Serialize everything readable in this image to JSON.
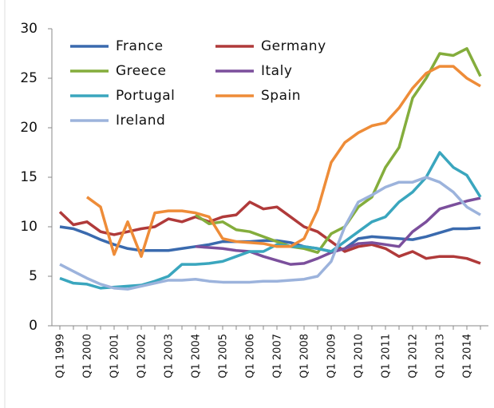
{
  "chart_data": {
    "type": "line",
    "categories": [
      "Q1 1999",
      null,
      "Q1 2000",
      null,
      "Q1 2001",
      null,
      "Q1 2002",
      null,
      "Q1 2003",
      null,
      "Q1 2004",
      null,
      "Q1 2005",
      null,
      "Q1 2006",
      null,
      "Q1 2007",
      null,
      "Q1 2008",
      null,
      "Q1 2009",
      null,
      "Q1 2010",
      null,
      "Q1 2011",
      null,
      "Q1 2012",
      null,
      "Q1 2013",
      null,
      "Q1 2014",
      null
    ],
    "ylim": [
      0,
      30
    ],
    "yticks": [
      0,
      5,
      10,
      15,
      20,
      25,
      30
    ],
    "grid": false,
    "legend": "top-left",
    "series": [
      {
        "name": "France",
        "color": "#3a6aae",
        "values": [
          10,
          9.8,
          9.3,
          8.7,
          8.2,
          7.8,
          7.6,
          7.6,
          7.6,
          7.8,
          8.0,
          8.2,
          8.5,
          8.5,
          8.5,
          8.6,
          8.6,
          8.4,
          8.0,
          7.8,
          7.5,
          7.8,
          8.8,
          9.0,
          8.9,
          8.8,
          8.7,
          9.0,
          9.4,
          9.8,
          9.8,
          9.9
        ]
      },
      {
        "name": "Germany",
        "color": "#b03a3a",
        "values": [
          11.5,
          10.2,
          10.5,
          9.5,
          9.2,
          9.5,
          9.8,
          10.0,
          10.8,
          10.5,
          11.0,
          10.5,
          11.0,
          11.2,
          12.5,
          11.8,
          12.0,
          11.0,
          10.0,
          9.5,
          8.5,
          7.5,
          8.0,
          8.2,
          7.8,
          7.0,
          7.5,
          6.8,
          7.0,
          7.0,
          6.8,
          6.3
        ]
      },
      {
        "name": "Greece",
        "color": "#84ad3c",
        "values": [
          null,
          null,
          null,
          null,
          null,
          null,
          null,
          null,
          null,
          null,
          11.2,
          10.3,
          10.5,
          9.7,
          9.5,
          9.0,
          8.5,
          8.0,
          7.8,
          7.4,
          9.3,
          10.0,
          12.0,
          13.0,
          16.0,
          18.0,
          23.0,
          25.0,
          27.5,
          27.3,
          28.0,
          25.2
        ]
      },
      {
        "name": "Italy",
        "color": "#7b4f9c",
        "values": [
          null,
          null,
          null,
          null,
          null,
          null,
          null,
          null,
          null,
          null,
          8.0,
          7.9,
          7.8,
          7.6,
          7.5,
          7.0,
          6.6,
          6.2,
          6.3,
          6.8,
          7.4,
          7.8,
          8.3,
          8.4,
          8.2,
          8.0,
          9.5,
          10.5,
          11.8,
          12.2,
          12.6,
          12.9
        ]
      },
      {
        "name": "Portugal",
        "color": "#3aa6be",
        "values": [
          4.8,
          4.3,
          4.2,
          3.8,
          3.9,
          4.0,
          4.1,
          4.5,
          5.0,
          6.2,
          6.2,
          6.3,
          6.5,
          7.0,
          7.5,
          7.5,
          8.2,
          8.0,
          8.0,
          7.8,
          7.5,
          8.5,
          9.5,
          10.5,
          11.0,
          12.5,
          13.5,
          15.0,
          17.5,
          16.0,
          15.2,
          13.0
        ]
      },
      {
        "name": "Spain",
        "color": "#ee8c38",
        "values": [
          null,
          null,
          13.0,
          12.0,
          7.2,
          10.5,
          7.0,
          11.4,
          11.6,
          11.6,
          11.4,
          11.0,
          8.8,
          8.5,
          8.4,
          8.3,
          8.0,
          8.0,
          8.8,
          11.7,
          16.5,
          18.5,
          19.5,
          20.2,
          20.5,
          22.0,
          24.0,
          25.5,
          26.2,
          26.2,
          25.0,
          24.2
        ]
      },
      {
        "name": "Ireland",
        "color": "#9cb3dc",
        "values": [
          6.2,
          5.5,
          4.8,
          4.2,
          3.8,
          3.7,
          4.0,
          4.3,
          4.6,
          4.6,
          4.7,
          4.5,
          4.4,
          4.4,
          4.4,
          4.5,
          4.5,
          4.6,
          4.7,
          5.0,
          6.5,
          10.0,
          12.5,
          13.2,
          14.0,
          14.5,
          14.5,
          15.0,
          14.5,
          13.5,
          12.0,
          11.2
        ]
      }
    ]
  }
}
